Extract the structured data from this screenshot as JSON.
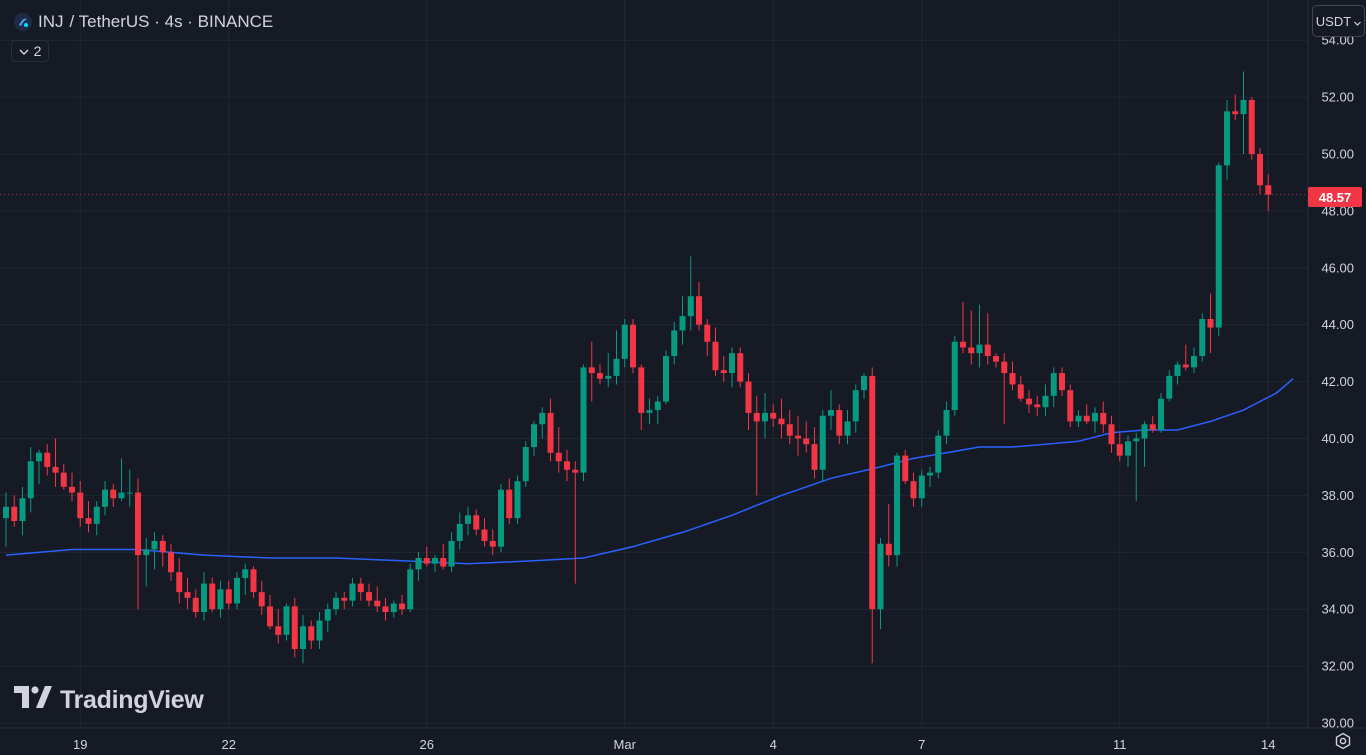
{
  "header": {
    "symbol": "INJ",
    "pair_text": "/ TetherUS · 4s · BINANCE"
  },
  "indicator_toggle": {
    "count": "2"
  },
  "currency": {
    "label": "USDT"
  },
  "last_price": {
    "label": "48.57",
    "value": 48.57,
    "color": "#f23645"
  },
  "watermark": {
    "text": "TradingView"
  },
  "colors": {
    "up": "#089981",
    "down": "#f23645",
    "ma": "#2962ff",
    "background": "#161a25",
    "grid": "#232734"
  },
  "icons": [
    "inj-logo-icon",
    "chevron-down-icon",
    "tradingview-logo-icon",
    "settings-icon"
  ],
  "chart_data": {
    "type": "candlestick",
    "title": "INJ / TetherUS · 4s · BINANCE",
    "y_ticks": [
      "30.00",
      "32.00",
      "34.00",
      "36.00",
      "38.00",
      "40.00",
      "42.00",
      "44.00",
      "46.00",
      "48.00",
      "50.00",
      "52.00",
      "54.00"
    ],
    "ylim": [
      30,
      54.4
    ],
    "x_ticks": [
      {
        "label": "19",
        "bar": 9
      },
      {
        "label": "22",
        "bar": 27
      },
      {
        "label": "26",
        "bar": 51
      },
      {
        "label": "Mar",
        "bar": 75
      },
      {
        "label": "4",
        "bar": 93
      },
      {
        "label": "7",
        "bar": 111
      },
      {
        "label": "11",
        "bar": 135
      },
      {
        "label": "14",
        "bar": 153
      }
    ],
    "grid": true,
    "last_price": 48.57,
    "candles": [
      [
        37.2,
        38.1,
        36.2,
        37.6
      ],
      [
        37.6,
        38.0,
        36.9,
        37.1
      ],
      [
        37.1,
        38.3,
        36.6,
        37.9
      ],
      [
        37.9,
        39.7,
        37.4,
        39.2
      ],
      [
        39.2,
        39.6,
        38.4,
        39.5
      ],
      [
        39.5,
        39.8,
        38.7,
        39.0
      ],
      [
        39.0,
        40.0,
        38.3,
        38.8
      ],
      [
        38.8,
        39.1,
        38.2,
        38.3
      ],
      [
        38.3,
        38.8,
        37.8,
        38.1
      ],
      [
        38.1,
        38.5,
        36.9,
        37.2
      ],
      [
        37.2,
        37.8,
        36.7,
        37.0
      ],
      [
        37.0,
        37.8,
        36.6,
        37.6
      ],
      [
        37.6,
        38.5,
        37.3,
        38.2
      ],
      [
        38.2,
        38.4,
        37.6,
        37.9
      ],
      [
        37.9,
        39.3,
        37.8,
        38.1
      ],
      [
        38.1,
        38.9,
        37.6,
        38.1
      ],
      [
        38.1,
        38.6,
        34.0,
        35.9
      ],
      [
        35.9,
        36.5,
        34.8,
        36.1
      ],
      [
        36.1,
        36.7,
        35.4,
        36.4
      ],
      [
        36.4,
        36.6,
        35.5,
        36.0
      ],
      [
        36.0,
        36.3,
        35.0,
        35.3
      ],
      [
        35.3,
        35.8,
        34.2,
        34.6
      ],
      [
        34.6,
        35.1,
        34.0,
        34.4
      ],
      [
        34.4,
        34.7,
        33.7,
        33.9
      ],
      [
        33.9,
        35.3,
        33.6,
        34.9
      ],
      [
        34.9,
        35.1,
        33.9,
        34.0
      ],
      [
        34.0,
        35.0,
        33.7,
        34.7
      ],
      [
        34.7,
        35.0,
        34.0,
        34.2
      ],
      [
        34.2,
        35.3,
        34.0,
        35.1
      ],
      [
        35.1,
        35.6,
        34.5,
        35.4
      ],
      [
        35.4,
        35.5,
        34.4,
        34.6
      ],
      [
        34.6,
        35.0,
        33.8,
        34.1
      ],
      [
        34.1,
        34.5,
        33.3,
        33.4
      ],
      [
        33.4,
        34.0,
        32.8,
        33.1
      ],
      [
        33.1,
        34.2,
        32.9,
        34.1
      ],
      [
        34.1,
        34.4,
        32.3,
        32.6
      ],
      [
        32.6,
        33.8,
        32.1,
        33.4
      ],
      [
        33.4,
        33.6,
        32.6,
        32.9
      ],
      [
        32.9,
        33.9,
        32.6,
        33.6
      ],
      [
        33.6,
        34.2,
        33.2,
        34.0
      ],
      [
        34.0,
        34.6,
        33.8,
        34.4
      ],
      [
        34.4,
        34.6,
        34.0,
        34.3
      ],
      [
        34.3,
        35.1,
        34.1,
        34.9
      ],
      [
        34.9,
        35.1,
        34.3,
        34.6
      ],
      [
        34.6,
        34.9,
        34.1,
        34.3
      ],
      [
        34.3,
        34.8,
        33.9,
        34.1
      ],
      [
        34.1,
        34.4,
        33.6,
        33.9
      ],
      [
        33.9,
        34.3,
        33.7,
        34.2
      ],
      [
        34.2,
        34.5,
        33.8,
        34.0
      ],
      [
        34.0,
        35.6,
        33.9,
        35.4
      ],
      [
        35.4,
        36.0,
        35.0,
        35.8
      ],
      [
        35.8,
        36.2,
        35.5,
        35.6
      ],
      [
        35.6,
        35.9,
        35.3,
        35.8
      ],
      [
        35.8,
        36.3,
        35.4,
        35.5
      ],
      [
        35.5,
        36.7,
        35.3,
        36.4
      ],
      [
        36.4,
        37.4,
        36.1,
        37.0
      ],
      [
        37.0,
        37.6,
        36.6,
        37.3
      ],
      [
        37.3,
        37.5,
        36.6,
        36.8
      ],
      [
        36.8,
        37.2,
        36.2,
        36.4
      ],
      [
        36.4,
        36.8,
        35.9,
        36.2
      ],
      [
        36.2,
        38.4,
        36.0,
        38.2
      ],
      [
        38.2,
        38.6,
        37.0,
        37.2
      ],
      [
        37.2,
        38.7,
        37.0,
        38.5
      ],
      [
        38.5,
        39.9,
        38.3,
        39.7
      ],
      [
        39.7,
        40.6,
        39.4,
        40.5
      ],
      [
        40.5,
        41.1,
        40.0,
        40.9
      ],
      [
        40.9,
        41.4,
        39.2,
        39.5
      ],
      [
        39.5,
        40.4,
        38.8,
        39.2
      ],
      [
        39.2,
        39.6,
        38.5,
        38.9
      ],
      [
        38.9,
        39.2,
        34.9,
        38.8
      ],
      [
        38.8,
        42.6,
        38.5,
        42.5
      ],
      [
        42.5,
        43.4,
        41.3,
        42.3
      ],
      [
        42.3,
        42.6,
        41.9,
        42.1
      ],
      [
        42.1,
        43.0,
        41.8,
        42.2
      ],
      [
        42.2,
        43.8,
        41.9,
        42.8
      ],
      [
        42.8,
        44.2,
        42.5,
        44.0
      ],
      [
        44.0,
        44.2,
        42.3,
        42.5
      ],
      [
        42.5,
        42.6,
        40.3,
        40.9
      ],
      [
        40.9,
        41.4,
        40.5,
        41.0
      ],
      [
        41.0,
        41.5,
        40.5,
        41.3
      ],
      [
        41.3,
        43.1,
        41.2,
        42.9
      ],
      [
        42.9,
        44.1,
        42.6,
        43.8
      ],
      [
        43.8,
        45.0,
        43.3,
        44.3
      ],
      [
        44.3,
        46.4,
        43.8,
        45.0
      ],
      [
        45.0,
        45.5,
        43.8,
        44.0
      ],
      [
        44.0,
        44.2,
        42.9,
        43.4
      ],
      [
        43.4,
        43.9,
        42.2,
        42.4
      ],
      [
        42.4,
        42.9,
        42.0,
        42.3
      ],
      [
        42.3,
        43.2,
        41.8,
        43.0
      ],
      [
        43.0,
        43.2,
        41.8,
        42.0
      ],
      [
        42.0,
        42.3,
        40.3,
        40.9
      ],
      [
        40.9,
        41.5,
        38.0,
        40.6
      ],
      [
        40.6,
        41.6,
        40.0,
        40.9
      ],
      [
        40.9,
        41.2,
        40.4,
        40.7
      ],
      [
        40.7,
        41.4,
        40.0,
        40.5
      ],
      [
        40.5,
        41.0,
        39.8,
        40.1
      ],
      [
        40.1,
        40.8,
        39.4,
        40.0
      ],
      [
        40.0,
        40.6,
        39.5,
        39.8
      ],
      [
        39.8,
        40.4,
        38.6,
        38.9
      ],
      [
        38.9,
        41.0,
        38.5,
        40.8
      ],
      [
        40.8,
        41.7,
        40.3,
        41.0
      ],
      [
        41.0,
        41.2,
        39.8,
        40.1
      ],
      [
        40.1,
        41.0,
        39.8,
        40.6
      ],
      [
        40.6,
        41.9,
        40.2,
        41.7
      ],
      [
        41.7,
        42.3,
        41.4,
        42.2
      ],
      [
        42.2,
        42.5,
        32.1,
        34.0
      ],
      [
        34.0,
        36.5,
        33.3,
        36.3
      ],
      [
        36.3,
        37.7,
        35.5,
        35.9
      ],
      [
        35.9,
        39.5,
        35.5,
        39.4
      ],
      [
        39.4,
        39.6,
        38.4,
        38.5
      ],
      [
        38.5,
        38.8,
        37.6,
        37.9
      ],
      [
        37.9,
        38.9,
        37.6,
        38.7
      ],
      [
        38.7,
        39.0,
        38.3,
        38.8
      ],
      [
        38.8,
        40.3,
        38.6,
        40.1
      ],
      [
        40.1,
        41.3,
        39.8,
        41.0
      ],
      [
        41.0,
        43.6,
        40.8,
        43.4
      ],
      [
        43.4,
        44.8,
        43.0,
        43.2
      ],
      [
        43.2,
        44.5,
        42.6,
        43.0
      ],
      [
        43.0,
        44.7,
        42.5,
        43.3
      ],
      [
        43.3,
        44.4,
        42.6,
        42.9
      ],
      [
        42.9,
        43.0,
        42.5,
        42.7
      ],
      [
        42.7,
        43.0,
        40.5,
        42.3
      ],
      [
        42.3,
        42.7,
        41.7,
        41.9
      ],
      [
        41.9,
        42.2,
        41.3,
        41.4
      ],
      [
        41.4,
        41.7,
        40.9,
        41.2
      ],
      [
        41.2,
        41.5,
        40.8,
        41.1
      ],
      [
        41.1,
        41.9,
        40.8,
        41.5
      ],
      [
        41.5,
        42.5,
        41.1,
        42.3
      ],
      [
        42.3,
        42.5,
        41.5,
        41.7
      ],
      [
        41.7,
        41.9,
        40.4,
        40.6
      ],
      [
        40.6,
        41.0,
        40.4,
        40.8
      ],
      [
        40.8,
        41.2,
        40.5,
        40.6
      ],
      [
        40.6,
        41.1,
        40.2,
        40.9
      ],
      [
        40.9,
        41.3,
        40.2,
        40.5
      ],
      [
        40.5,
        40.8,
        39.5,
        39.8
      ],
      [
        39.8,
        40.2,
        39.2,
        39.4
      ],
      [
        39.4,
        40.1,
        39.0,
        39.9
      ],
      [
        39.9,
        40.2,
        37.8,
        40.0
      ],
      [
        40.0,
        40.6,
        39.0,
        40.5
      ],
      [
        40.5,
        40.8,
        40.2,
        40.3
      ],
      [
        40.3,
        41.6,
        40.2,
        41.4
      ],
      [
        41.4,
        42.4,
        41.3,
        42.2
      ],
      [
        42.2,
        42.7,
        41.9,
        42.6
      ],
      [
        42.6,
        43.3,
        42.4,
        42.5
      ],
      [
        42.5,
        43.2,
        42.3,
        42.9
      ],
      [
        42.9,
        44.4,
        42.7,
        44.2
      ],
      [
        44.2,
        45.1,
        43.0,
        43.9
      ],
      [
        43.9,
        49.7,
        43.6,
        49.6
      ],
      [
        49.6,
        51.9,
        49.1,
        51.5
      ],
      [
        51.5,
        52.1,
        51.2,
        51.4
      ],
      [
        51.4,
        52.9,
        50.0,
        51.9
      ],
      [
        51.9,
        52.0,
        49.8,
        50.0
      ],
      [
        50.0,
        50.2,
        48.6,
        48.9
      ],
      [
        48.9,
        49.3,
        48.0,
        48.57
      ]
    ],
    "ma_line": {
      "period_note": "",
      "points": [
        [
          0,
          35.9
        ],
        [
          8,
          36.1
        ],
        [
          16,
          36.1
        ],
        [
          24,
          35.9
        ],
        [
          32,
          35.8
        ],
        [
          40,
          35.8
        ],
        [
          48,
          35.7
        ],
        [
          56,
          35.6
        ],
        [
          64,
          35.7
        ],
        [
          70,
          35.8
        ],
        [
          76,
          36.2
        ],
        [
          82,
          36.7
        ],
        [
          88,
          37.3
        ],
        [
          94,
          38.0
        ],
        [
          100,
          38.6
        ],
        [
          106,
          39.0
        ],
        [
          110,
          39.3
        ],
        [
          114,
          39.5
        ],
        [
          118,
          39.7
        ],
        [
          122,
          39.7
        ],
        [
          126,
          39.8
        ],
        [
          130,
          39.9
        ],
        [
          134,
          40.2
        ],
        [
          138,
          40.3
        ],
        [
          142,
          40.3
        ],
        [
          146,
          40.6
        ],
        [
          150,
          41.0
        ],
        [
          152,
          41.3
        ],
        [
          154,
          41.6
        ],
        [
          156,
          42.1
        ]
      ]
    }
  }
}
